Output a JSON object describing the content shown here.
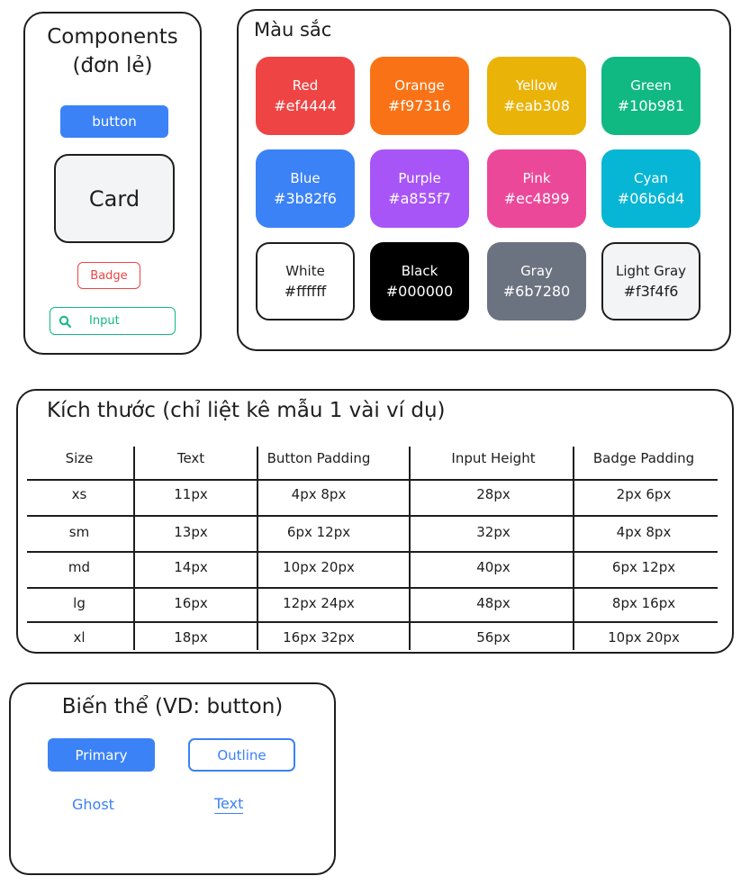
{
  "components": {
    "title_line1": "Components",
    "title_line2": "(đơn lẻ)",
    "button_label": "button",
    "card_label": "Card",
    "badge_label": "Badge",
    "input_placeholder": "Input",
    "input_icon": "search-icon"
  },
  "colors": {
    "title": "Màu sắc",
    "swatches": [
      {
        "name": "Red",
        "hex": "#ef4444",
        "bg": "#ef4444",
        "fg": "#ffffff"
      },
      {
        "name": "Orange",
        "hex": "#f97316",
        "bg": "#f97316",
        "fg": "#ffffff"
      },
      {
        "name": "Yellow",
        "hex": "#eab308",
        "bg": "#eab308",
        "fg": "#ffffff"
      },
      {
        "name": "Green",
        "hex": "#10b981",
        "bg": "#10b981",
        "fg": "#ffffff"
      },
      {
        "name": "Blue",
        "hex": "#3b82f6",
        "bg": "#3b82f6",
        "fg": "#ffffff"
      },
      {
        "name": "Purple",
        "hex": "#a855f7",
        "bg": "#a855f7",
        "fg": "#ffffff"
      },
      {
        "name": "Pink",
        "hex": "#ec4899",
        "bg": "#ec4899",
        "fg": "#ffffff"
      },
      {
        "name": "Cyan",
        "hex": "#06b6d4",
        "bg": "#06b6d4",
        "fg": "#ffffff"
      },
      {
        "name": "White",
        "hex": "#ffffff",
        "bg": "#ffffff",
        "fg": "#1e1e1e"
      },
      {
        "name": "Black",
        "hex": "#000000",
        "bg": "#000000",
        "fg": "#ffffff"
      },
      {
        "name": "Gray",
        "hex": "#6b7280",
        "bg": "#6b7280",
        "fg": "#ffffff"
      },
      {
        "name": "Light Gray",
        "hex": "#f3f4f6",
        "bg": "#f3f4f6",
        "fg": "#1e1e1e"
      }
    ]
  },
  "sizes": {
    "title": "Kích thước (chỉ liệt kê mẫu 1 vài ví dụ)",
    "headers": [
      "Size",
      "Text",
      "Button Padding",
      "Input Height",
      "Badge Padding"
    ],
    "rows": [
      [
        "xs",
        "11px",
        "4px 8px",
        "28px",
        "2px 6px"
      ],
      [
        "sm",
        "13px",
        "6px 12px",
        "32px",
        "4px 8px"
      ],
      [
        "md",
        "14px",
        "10px 20px",
        "40px",
        "6px 12px"
      ],
      [
        "lg",
        "16px",
        "12px 24px",
        "48px",
        "8px 16px"
      ],
      [
        "xl",
        "18px",
        "16px 32px",
        "56px",
        "10px 20px"
      ]
    ]
  },
  "variants": {
    "title": "Biến thể (VD: button)",
    "primary": "Primary",
    "outline": "Outline",
    "ghost": "Ghost",
    "text": "Text"
  },
  "accent_colors": {
    "primary_blue": "#3b82f6",
    "badge_red": "#ef4444",
    "input_green": "#10b981",
    "card_gray": "#f3f4f6",
    "stroke": "#1e1e1e"
  }
}
